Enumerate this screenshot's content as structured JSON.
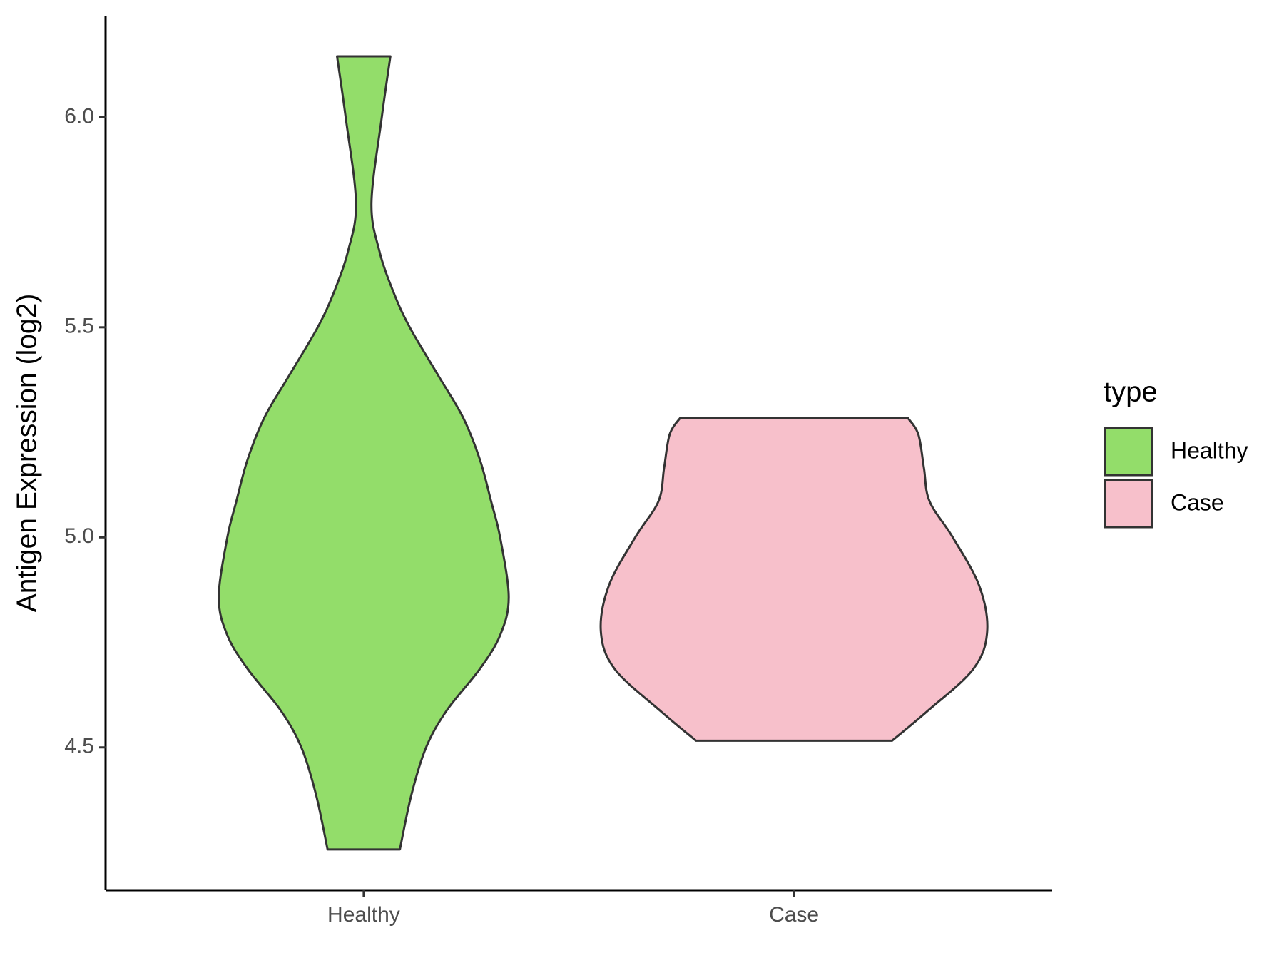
{
  "chart_data": {
    "type": "violin",
    "y_label": "Antigen Expression (log2)",
    "legend_title": "type",
    "categories": [
      "Healthy",
      "Case"
    ],
    "ylim": [
      4.16,
      6.24
    ],
    "yticks": [
      {
        "value": 4.5,
        "label": "4.5"
      },
      {
        "value": 5,
        "label": "5.0"
      },
      {
        "value": 5.5,
        "label": "5.5"
      },
      {
        "value": 6,
        "label": "6.0"
      }
    ],
    "grid": false,
    "legend_position": "right",
    "series": [
      {
        "name": "Healthy",
        "color": "#93dd6a",
        "y": [
          6.145,
          6.0,
          5.797,
          5.683,
          5.584,
          5.5,
          5.384,
          5.285,
          5.185,
          5.086,
          5.0,
          4.857,
          4.767,
          4.687,
          4.588,
          4.5,
          4.388,
          4.257
        ],
        "widths": [
          0.062,
          0.042,
          0.018,
          0.036,
          0.069,
          0.107,
          0.174,
          0.231,
          0.27,
          0.296,
          0.317,
          0.337,
          0.317,
          0.27,
          0.193,
          0.145,
          0.111,
          0.084
        ]
      },
      {
        "name": "Case",
        "color": "#f7c0cb",
        "y": [
          5.285,
          5.245,
          5.165,
          5.086,
          5.0,
          4.886,
          4.777,
          4.687,
          4.588,
          4.516
        ],
        "widths": [
          0.264,
          0.289,
          0.302,
          0.315,
          0.369,
          0.43,
          0.449,
          0.417,
          0.312,
          0.228
        ]
      }
    ]
  }
}
